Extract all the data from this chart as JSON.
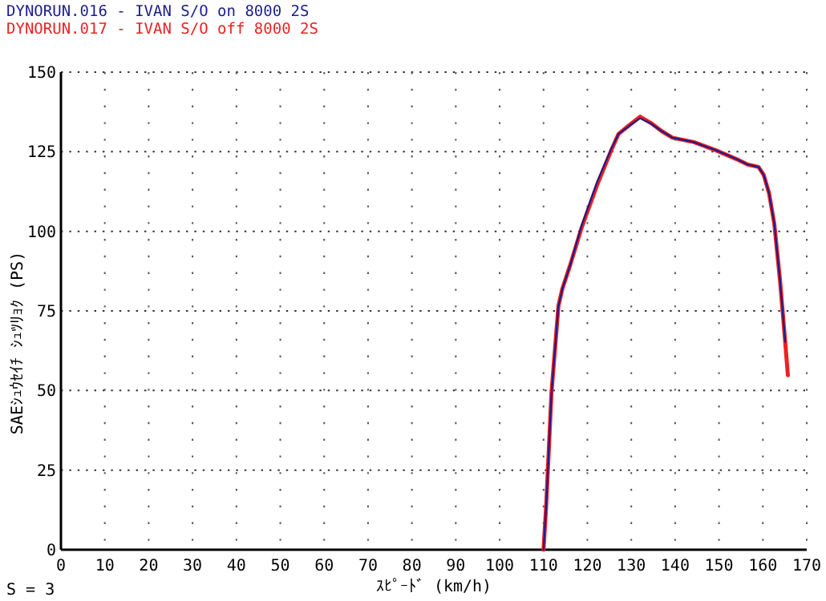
{
  "chart_data": {
    "type": "line",
    "xlabel": "ｽﾋﾟｰﾄﾞ (km/h)",
    "ylabel": "SAEｼｭｳｾｲﾁ ｼｭﾂﾘｮｸ (PS)",
    "annotations": [
      "S = 3"
    ],
    "xlim": [
      0,
      170
    ],
    "ylim": [
      0,
      150
    ],
    "xticks": [
      0,
      10,
      20,
      30,
      40,
      50,
      60,
      70,
      80,
      90,
      100,
      110,
      120,
      130,
      140,
      150,
      160,
      170
    ],
    "yticks": [
      0,
      25,
      50,
      75,
      100,
      125,
      150
    ],
    "grid": true,
    "legend": "top left",
    "marker": "none",
    "line_style": "solid",
    "series": [
      {
        "name": "DYNORUN.016 - IVAN S/O on 8000   2S",
        "color": "#1c1c8c",
        "x": [
          110,
          110.6,
          111.8,
          113.4,
          114.3,
          116.1,
          118.6,
          122.2,
          125.3,
          127.1,
          129.6,
          132,
          134.5,
          136.9,
          139.4,
          144.3,
          149.2,
          154.1,
          156.5,
          159,
          160.2,
          161.4,
          162.6,
          163.9,
          165.1
        ],
        "values": [
          0,
          13.7,
          49,
          76.6,
          82,
          89.5,
          101.5,
          115.5,
          125.5,
          130.6,
          133.2,
          135.5,
          133.8,
          131.5,
          129.4,
          128,
          125.5,
          122.6,
          121,
          120.2,
          117.7,
          112,
          102.4,
          84.7,
          65.3
        ]
      },
      {
        "name": "DYNORUN.017 - IVAN S/O off 8000   2S",
        "color": "#ee2020",
        "x": [
          110,
          110.6,
          111.8,
          113.4,
          114.3,
          116.1,
          118.6,
          122.2,
          125.3,
          127.1,
          129.6,
          132,
          134.5,
          136.9,
          139.4,
          144.3,
          149.2,
          154.1,
          156.5,
          159,
          160.2,
          161.4,
          162.6,
          163.9,
          164.8,
          165.7
        ],
        "values": [
          0,
          13.7,
          49,
          76.6,
          82,
          89.5,
          100.8,
          114.5,
          125,
          130.6,
          133.4,
          136,
          134,
          131.5,
          129.4,
          128,
          125.5,
          122.6,
          121,
          120.2,
          117.7,
          112,
          102.4,
          84.7,
          70,
          54.8
        ]
      }
    ]
  }
}
